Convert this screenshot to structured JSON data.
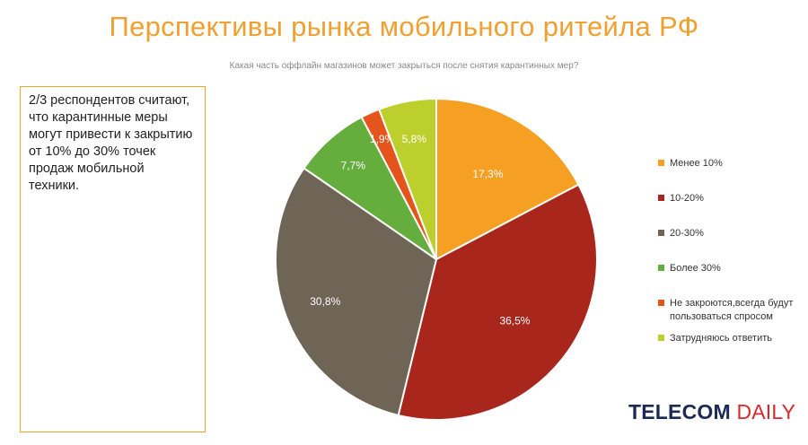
{
  "header": {
    "title": "Перспективы рынка мобильного ритейла РФ"
  },
  "callout": {
    "text": "2/3 респондентов считают, что карантинные меры могут привести к закрытию от 10% до 30% точек продаж мобильной техники."
  },
  "brand": {
    "main": "TELECOM ",
    "accent": "DAILY"
  },
  "chart_data": {
    "type": "pie",
    "title": "Какая часть оффлайн магазинов может закрыться после снятия карантинных мер?",
    "legend_position": "right",
    "slices": [
      {
        "name": "Менее 10%",
        "value": 17.3,
        "label": "17,3%",
        "color": "#f5a023"
      },
      {
        "name": "10-20%",
        "value": 36.5,
        "label": "36,5%",
        "color": "#a8261c"
      },
      {
        "name": "20-30%",
        "value": 30.8,
        "label": "30,8%",
        "color": "#6e6557"
      },
      {
        "name": "Более 30%",
        "value": 7.7,
        "label": "7,7%",
        "color": "#65ad3c"
      },
      {
        "name": "Не закроются,всегда будут пользоваться спросом",
        "value": 1.9,
        "label": "1,9%",
        "color": "#e5541b"
      },
      {
        "name": "Затрудняюсь ответить",
        "value": 5.8,
        "label": "5,8%",
        "color": "#bccf2c"
      }
    ]
  }
}
